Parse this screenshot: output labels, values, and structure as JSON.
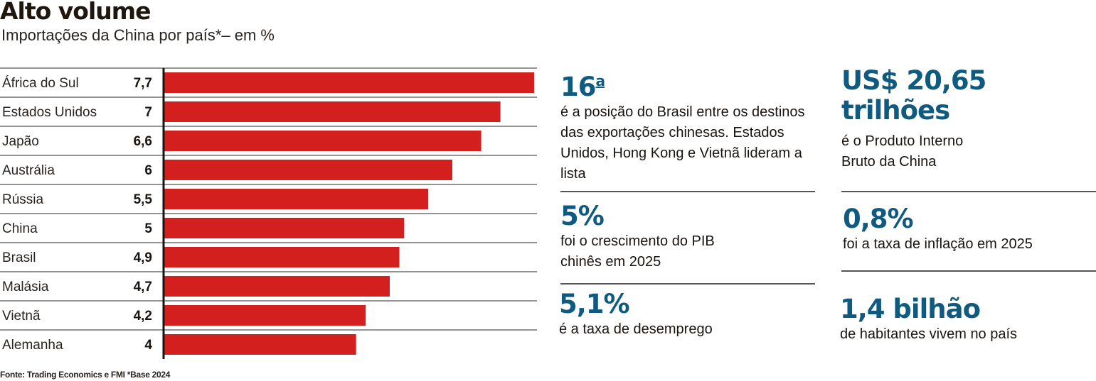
{
  "header": {
    "title": "Alto volume",
    "subtitle": "Importações da China por país*– em %"
  },
  "chart_data": {
    "type": "bar",
    "orientation": "horizontal",
    "title": "Alto volume",
    "subtitle": "Importações da China por país*– em %",
    "categories": [
      "África do Sul",
      "Estados Unidos",
      "Japão",
      "Austrália",
      "Rússia",
      "China",
      "Brasil",
      "Malásia",
      "Vietnã",
      "Alemanha"
    ],
    "value_labels": [
      "7,7",
      "7",
      "6,6",
      "6",
      "5,5",
      "5",
      "4,9",
      "4,7",
      "4,2",
      "4"
    ],
    "values": [
      7.7,
      7,
      6.6,
      6,
      5.5,
      5,
      4.9,
      4.7,
      4.2,
      4
    ],
    "xlabel": "",
    "ylabel": "",
    "xlim": [
      0,
      7.7
    ],
    "grid": false,
    "bar_color": "#d41f1f"
  },
  "source": "Fonte: Trading Economics e FMI *Base 2024",
  "stats": [
    {
      "value": "16",
      "value_sup": "a",
      "description": "é a posição do Brasil entre os destinos das exportações chinesas. Estados Unidos, Hong Kong e Vietnã lideram a lista"
    },
    {
      "value": "5%",
      "description": "foi o crescimento do PIB chinês em 2025"
    },
    {
      "value": "5,1%",
      "description": "é a taxa de desemprego"
    },
    {
      "value": "US$ 20,65 trilhões",
      "description": "é o Produto Interno Bruto da China"
    },
    {
      "value": "0,8%",
      "description": "foi a taxa de inflação em 2025"
    },
    {
      "value": "1,4 bilhão",
      "description": "de habitantes vivem no país"
    }
  ],
  "colors": {
    "accent": "#0f5a80",
    "bar": "#d41f1f",
    "text": "#1a1410"
  }
}
